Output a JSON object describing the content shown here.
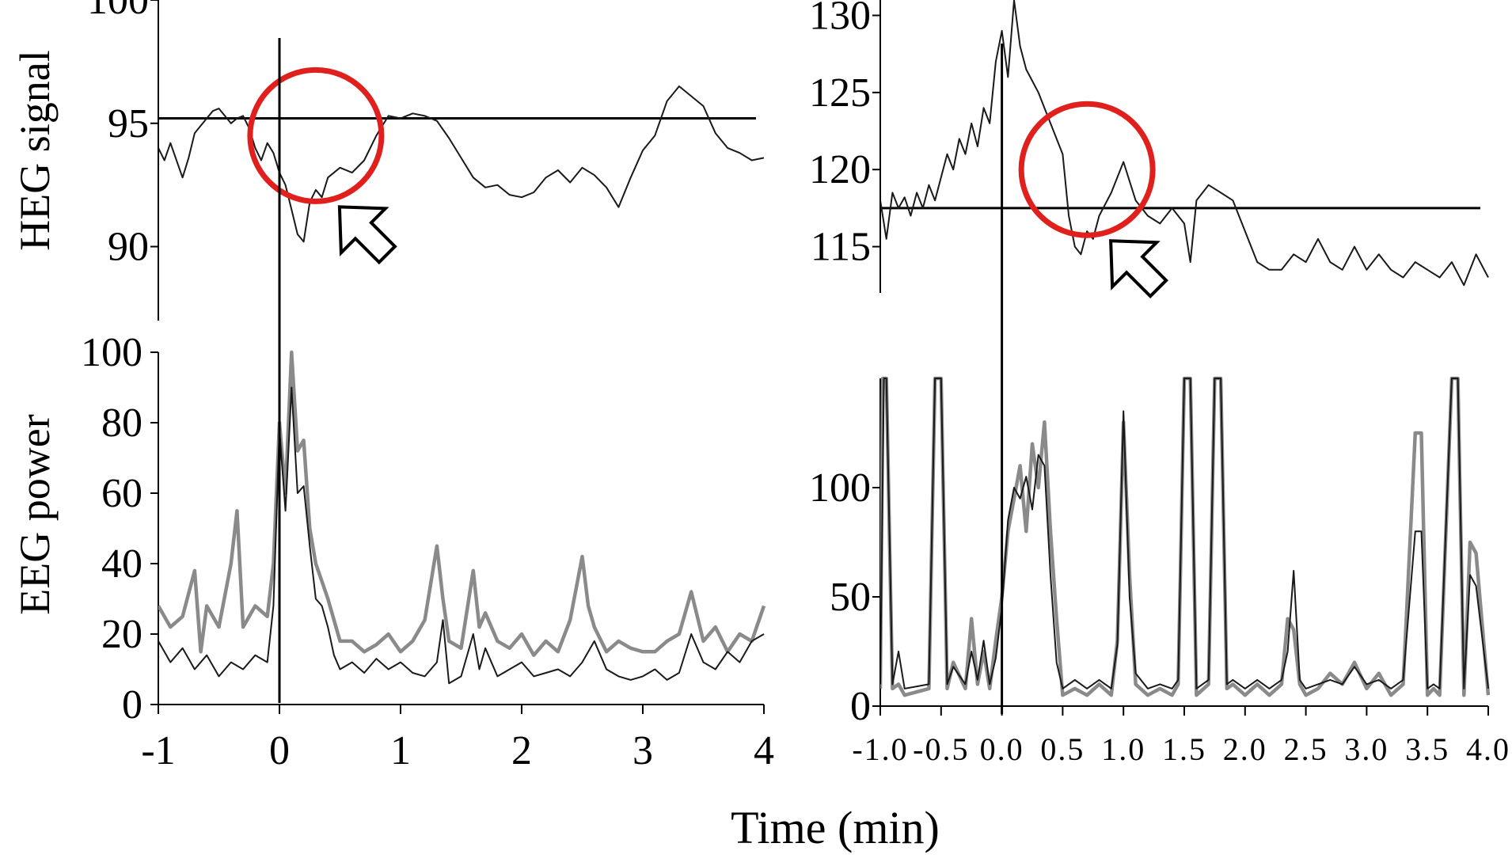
{
  "xlabel": "Time (min)",
  "colors": {
    "dark": "#1a1a1a",
    "gray": "#8a8a8a",
    "highlight": "#e0201c"
  },
  "chart_data": [
    {
      "id": "heg-left",
      "type": "line",
      "ylabel": "HEG signal",
      "ylim": [
        87,
        100
      ],
      "xlim": [
        -1,
        4
      ],
      "yticks": [
        "100",
        "95",
        "90"
      ],
      "ytick_values": [
        100,
        95,
        90
      ],
      "xticks": [],
      "reference_hline": 95.2,
      "reference_vline": 0,
      "highlight_circle": {
        "x": 0.3,
        "y": 94.5
      },
      "arrow_icon": "hollow-arrow-up-left-icon",
      "series": [
        {
          "color": "dark",
          "x": [
            -1,
            -0.95,
            -0.9,
            -0.8,
            -0.75,
            -0.7,
            -0.6,
            -0.55,
            -0.5,
            -0.45,
            -0.4,
            -0.35,
            -0.3,
            -0.25,
            -0.2,
            -0.15,
            -0.1,
            -0.05,
            0,
            0.05,
            0.1,
            0.15,
            0.2,
            0.25,
            0.3,
            0.35,
            0.4,
            0.5,
            0.6,
            0.7,
            0.8,
            0.9,
            1.0,
            1.1,
            1.2,
            1.3,
            1.4,
            1.5,
            1.6,
            1.7,
            1.8,
            1.9,
            2.0,
            2.1,
            2.2,
            2.3,
            2.4,
            2.5,
            2.6,
            2.7,
            2.8,
            2.9,
            3.0,
            3.1,
            3.2,
            3.3,
            3.4,
            3.5,
            3.6,
            3.7,
            3.8,
            3.9,
            4.0
          ],
          "values": [
            94.0,
            93.5,
            94.2,
            92.8,
            93.6,
            94.6,
            95.2,
            95.5,
            95.6,
            95.3,
            95.0,
            95.2,
            95.3,
            94.8,
            94.0,
            93.5,
            94.2,
            93.8,
            93.0,
            92.5,
            91.5,
            90.5,
            90.2,
            91.8,
            92.3,
            92.0,
            92.8,
            93.2,
            93.0,
            93.5,
            94.5,
            95.3,
            95.2,
            95.4,
            95.3,
            95.1,
            94.4,
            93.6,
            92.8,
            92.4,
            92.5,
            92.1,
            92.0,
            92.2,
            92.8,
            93.1,
            92.6,
            93.2,
            92.9,
            92.4,
            91.6,
            92.8,
            93.9,
            94.5,
            95.9,
            96.5,
            96.1,
            95.7,
            94.6,
            94.0,
            93.8,
            93.5,
            93.6
          ]
        }
      ]
    },
    {
      "id": "eeg-left",
      "type": "line",
      "ylabel": "EEG power",
      "ylim": [
        0,
        100
      ],
      "xlim": [
        -1,
        4
      ],
      "yticks": [
        "100",
        "80",
        "60",
        "40",
        "20",
        "0"
      ],
      "ytick_values": [
        100,
        80,
        60,
        40,
        20,
        0
      ],
      "xticks": [
        "-1",
        "0",
        "1",
        "2",
        "3",
        "4"
      ],
      "xtick_values": [
        -1,
        0,
        1,
        2,
        3,
        4
      ],
      "reference_vline": 0,
      "series": [
        {
          "color": "gray",
          "x": [
            -1,
            -0.9,
            -0.8,
            -0.7,
            -0.65,
            -0.6,
            -0.5,
            -0.4,
            -0.35,
            -0.3,
            -0.2,
            -0.1,
            -0.05,
            0,
            0.05,
            0.1,
            0.15,
            0.2,
            0.25,
            0.3,
            0.35,
            0.4,
            0.45,
            0.5,
            0.6,
            0.7,
            0.8,
            0.9,
            1.0,
            1.1,
            1.2,
            1.3,
            1.35,
            1.4,
            1.5,
            1.6,
            1.65,
            1.7,
            1.8,
            1.9,
            2.0,
            2.1,
            2.2,
            2.3,
            2.4,
            2.5,
            2.55,
            2.6,
            2.7,
            2.8,
            2.9,
            3.0,
            3.1,
            3.2,
            3.3,
            3.4,
            3.5,
            3.6,
            3.7,
            3.8,
            3.9,
            4.0
          ],
          "values": [
            28,
            22,
            25,
            38,
            15,
            28,
            22,
            40,
            55,
            22,
            28,
            25,
            40,
            80,
            60,
            100,
            72,
            75,
            50,
            40,
            35,
            30,
            24,
            18,
            18,
            15,
            17,
            20,
            15,
            18,
            24,
            45,
            30,
            18,
            16,
            38,
            22,
            26,
            18,
            16,
            20,
            14,
            18,
            15,
            24,
            42,
            28,
            22,
            15,
            18,
            16,
            15,
            15,
            18,
            20,
            32,
            18,
            22,
            15,
            20,
            18,
            28
          ]
        },
        {
          "color": "dark",
          "x": [
            -1,
            -0.9,
            -0.8,
            -0.7,
            -0.6,
            -0.5,
            -0.4,
            -0.3,
            -0.2,
            -0.1,
            -0.05,
            0,
            0.05,
            0.1,
            0.15,
            0.2,
            0.25,
            0.3,
            0.35,
            0.4,
            0.45,
            0.5,
            0.6,
            0.7,
            0.8,
            0.9,
            1.0,
            1.1,
            1.2,
            1.3,
            1.35,
            1.4,
            1.5,
            1.6,
            1.65,
            1.7,
            1.8,
            1.9,
            2.0,
            2.1,
            2.2,
            2.3,
            2.4,
            2.5,
            2.6,
            2.7,
            2.8,
            2.9,
            3.0,
            3.1,
            3.2,
            3.3,
            3.4,
            3.5,
            3.6,
            3.7,
            3.8,
            3.9,
            4.0
          ],
          "values": [
            18,
            12,
            16,
            10,
            14,
            8,
            12,
            10,
            14,
            12,
            28,
            78,
            55,
            90,
            60,
            62,
            45,
            30,
            28,
            22,
            14,
            10,
            12,
            9,
            13,
            10,
            12,
            9,
            8,
            12,
            24,
            6,
            8,
            20,
            10,
            16,
            8,
            10,
            12,
            8,
            9,
            10,
            8,
            12,
            18,
            10,
            8,
            7,
            8,
            10,
            7,
            9,
            20,
            12,
            10,
            15,
            12,
            18,
            20
          ]
        }
      ]
    },
    {
      "id": "heg-right",
      "type": "line",
      "ylabel": "",
      "ylim": [
        112,
        131
      ],
      "xlim": [
        -1,
        4
      ],
      "yticks": [
        "130",
        "125",
        "120",
        "115"
      ],
      "ytick_values": [
        130,
        125,
        120,
        115
      ],
      "xticks": [],
      "reference_hline": 117.5,
      "reference_vline": 0,
      "highlight_circle": {
        "x": 0.7,
        "y": 120
      },
      "arrow_icon": "hollow-arrow-up-left-icon",
      "series": [
        {
          "color": "dark",
          "x": [
            -1,
            -0.95,
            -0.9,
            -0.85,
            -0.8,
            -0.75,
            -0.7,
            -0.65,
            -0.6,
            -0.55,
            -0.5,
            -0.45,
            -0.4,
            -0.35,
            -0.3,
            -0.25,
            -0.2,
            -0.15,
            -0.1,
            -0.05,
            0,
            0.05,
            0.1,
            0.15,
            0.2,
            0.3,
            0.4,
            0.45,
            0.5,
            0.55,
            0.6,
            0.65,
            0.7,
            0.75,
            0.8,
            0.9,
            1.0,
            1.1,
            1.2,
            1.3,
            1.4,
            1.5,
            1.55,
            1.6,
            1.7,
            1.8,
            1.9,
            2.0,
            2.1,
            2.2,
            2.3,
            2.4,
            2.5,
            2.6,
            2.7,
            2.8,
            2.9,
            3.0,
            3.1,
            3.2,
            3.3,
            3.4,
            3.5,
            3.6,
            3.7,
            3.8,
            3.9,
            4.0
          ],
          "values": [
            118,
            115.5,
            118.5,
            117.5,
            118.2,
            117,
            118.5,
            117.5,
            119,
            118,
            119.5,
            121,
            120,
            122,
            121,
            123,
            121.5,
            124,
            123,
            127,
            129,
            126,
            131,
            128,
            126.5,
            125,
            123,
            122,
            121,
            117,
            115,
            114.5,
            116,
            115.5,
            117,
            118.5,
            120.5,
            118,
            117,
            116.5,
            117.5,
            116.5,
            114,
            118,
            119,
            118.5,
            118,
            116,
            114,
            113.5,
            113.5,
            114.5,
            114,
            115.5,
            114,
            113.5,
            115,
            113.5,
            114.5,
            113.5,
            113,
            114,
            113.5,
            113,
            114,
            112.5,
            114.5,
            113
          ]
        }
      ]
    },
    {
      "id": "eeg-right",
      "type": "line",
      "ylabel": "",
      "ylim": [
        0,
        150
      ],
      "xlim": [
        -1,
        4
      ],
      "yticks": [
        "100",
        "50",
        "0"
      ],
      "ytick_values": [
        100,
        50,
        0
      ],
      "xticks": [
        "-1.0",
        "-0.5",
        "0.0",
        "0.5",
        "1.0",
        "1.5",
        "2.0",
        "2.5",
        "3.0",
        "3.5",
        "4.0"
      ],
      "xtick_values": [
        -1,
        -0.5,
        0,
        0.5,
        1,
        1.5,
        2,
        2.5,
        3,
        3.5,
        4
      ],
      "reference_vline": 0,
      "series": [
        {
          "color": "gray",
          "x": [
            -1,
            -0.98,
            -0.95,
            -0.9,
            -0.85,
            -0.8,
            -0.6,
            -0.55,
            -0.5,
            -0.45,
            -0.4,
            -0.3,
            -0.25,
            -0.2,
            -0.15,
            -0.1,
            -0.05,
            0,
            0.05,
            0.1,
            0.15,
            0.2,
            0.25,
            0.3,
            0.35,
            0.4,
            0.45,
            0.5,
            0.6,
            0.7,
            0.8,
            0.9,
            0.95,
            1.0,
            1.05,
            1.1,
            1.2,
            1.3,
            1.4,
            1.45,
            1.5,
            1.55,
            1.6,
            1.7,
            1.75,
            1.8,
            1.85,
            1.9,
            2.0,
            2.1,
            2.2,
            2.3,
            2.35,
            2.4,
            2.45,
            2.5,
            2.6,
            2.7,
            2.8,
            2.9,
            3.0,
            3.1,
            3.2,
            3.3,
            3.4,
            3.45,
            3.5,
            3.55,
            3.6,
            3.7,
            3.75,
            3.8,
            3.85,
            3.9,
            4.0
          ],
          "values": [
            8,
            150,
            150,
            8,
            10,
            5,
            8,
            150,
            150,
            8,
            20,
            8,
            40,
            10,
            25,
            8,
            30,
            50,
            80,
            95,
            110,
            80,
            120,
            100,
            130,
            80,
            40,
            5,
            8,
            5,
            10,
            5,
            30,
            130,
            60,
            10,
            5,
            8,
            5,
            10,
            150,
            150,
            5,
            10,
            150,
            150,
            8,
            10,
            5,
            10,
            5,
            10,
            40,
            35,
            10,
            5,
            8,
            15,
            10,
            20,
            8,
            15,
            5,
            10,
            125,
            125,
            5,
            8,
            5,
            150,
            150,
            5,
            75,
            70,
            5
          ]
        },
        {
          "color": "dark",
          "x": [
            -1,
            -0.97,
            -0.95,
            -0.9,
            -0.85,
            -0.8,
            -0.6,
            -0.55,
            -0.5,
            -0.45,
            -0.4,
            -0.3,
            -0.25,
            -0.2,
            -0.15,
            -0.1,
            -0.05,
            0,
            0.05,
            0.1,
            0.15,
            0.2,
            0.25,
            0.3,
            0.35,
            0.4,
            0.45,
            0.5,
            0.6,
            0.7,
            0.8,
            0.9,
            0.95,
            1.0,
            1.05,
            1.1,
            1.2,
            1.3,
            1.4,
            1.45,
            1.5,
            1.55,
            1.6,
            1.7,
            1.75,
            1.8,
            1.85,
            1.9,
            2.0,
            2.1,
            2.2,
            2.3,
            2.35,
            2.4,
            2.45,
            2.5,
            2.6,
            2.7,
            2.8,
            2.9,
            3.0,
            3.1,
            3.2,
            3.3,
            3.4,
            3.45,
            3.5,
            3.55,
            3.6,
            3.7,
            3.75,
            3.8,
            3.85,
            3.9,
            4.0
          ],
          "values": [
            10,
            150,
            150,
            10,
            25,
            8,
            10,
            150,
            150,
            10,
            18,
            10,
            25,
            12,
            30,
            10,
            22,
            45,
            85,
            100,
            95,
            105,
            90,
            115,
            110,
            60,
            20,
            8,
            12,
            8,
            12,
            8,
            28,
            135,
            50,
            15,
            8,
            10,
            8,
            12,
            150,
            150,
            8,
            12,
            150,
            150,
            10,
            12,
            8,
            12,
            8,
            12,
            25,
            62,
            12,
            8,
            10,
            12,
            10,
            18,
            10,
            12,
            8,
            12,
            80,
            80,
            8,
            10,
            8,
            150,
            150,
            8,
            60,
            55,
            8
          ]
        }
      ]
    }
  ]
}
